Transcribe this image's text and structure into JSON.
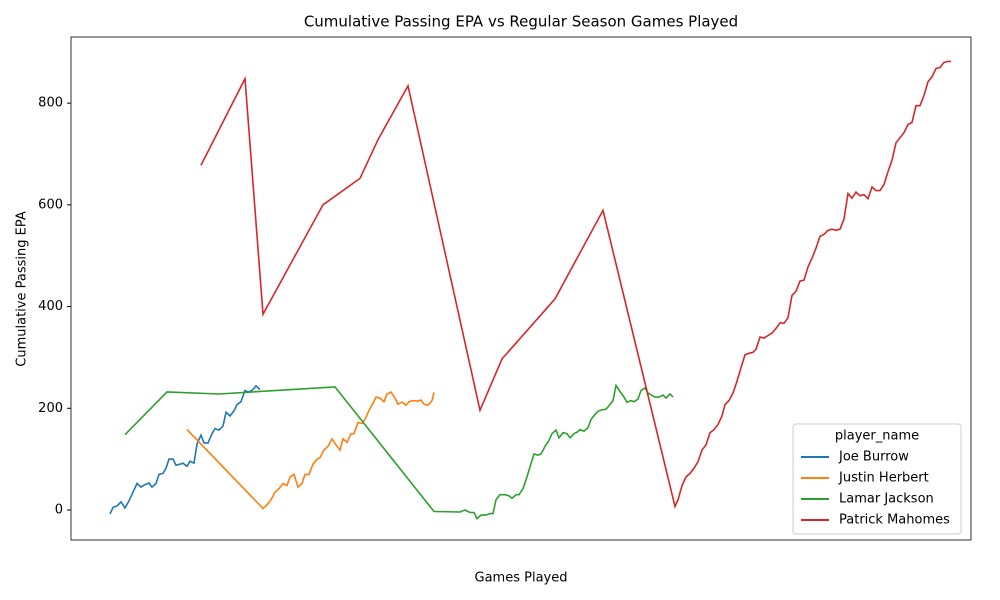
{
  "chart_data": {
    "type": "line",
    "title": "Cumulative Passing EPA vs Regular Season Games Played",
    "x_label": "Games Played",
    "y_label": "Cumulative Passing EPA",
    "xlim": [
      -39,
      861
    ],
    "ylim": [
      -59,
      930
    ],
    "yticks": [
      0,
      200,
      400,
      600,
      800
    ],
    "legend": {
      "title": "player_name",
      "position": "lower right"
    },
    "series": [
      {
        "name": "Joe Burrow",
        "color": "#1f77b4",
        "x": [
          0,
          3,
          7,
          11,
          15,
          19,
          23,
          27,
          31,
          35,
          39,
          42,
          46,
          49,
          53,
          56,
          59,
          63,
          66,
          70,
          73,
          77,
          80,
          84,
          87,
          91,
          94,
          98,
          102,
          105,
          109,
          113,
          116,
          120,
          124,
          127,
          131,
          135,
          138,
          142,
          146,
          150
        ],
        "values": [
          -8,
          5,
          8,
          16,
          4,
          18,
          35,
          52,
          45,
          50,
          53,
          45,
          52,
          70,
          72,
          82,
          100,
          100,
          88,
          90,
          92,
          86,
          96,
          92,
          130,
          147,
          132,
          132,
          150,
          160,
          157,
          165,
          192,
          185,
          195,
          207,
          213,
          235,
          232,
          235,
          244,
          237
        ]
      },
      {
        "name": "Justin Herbert",
        "color": "#ff7f0e",
        "x": [
          77,
          153,
          157,
          161,
          165,
          169,
          173,
          177,
          180,
          184,
          188,
          192,
          195,
          199,
          203,
          207,
          210,
          214,
          218,
          222,
          226,
          230,
          233,
          237,
          241,
          244,
          248,
          252,
          256,
          259,
          263,
          266,
          270,
          274,
          277,
          281,
          285,
          288,
          292,
          296,
          299,
          303,
          307,
          311,
          314,
          318,
          322,
          324
        ],
        "values": [
          158,
          3,
          10,
          20,
          35,
          42,
          52,
          48,
          65,
          70,
          45,
          52,
          70,
          70,
          90,
          100,
          103,
          118,
          125,
          140,
          128,
          118,
          140,
          133,
          150,
          150,
          172,
          170,
          182,
          196,
          210,
          222,
          220,
          213,
          228,
          232,
          220,
          208,
          212,
          206,
          213,
          215,
          214,
          216,
          208,
          206,
          215,
          231
        ]
      },
      {
        "name": "Lamar Jackson",
        "color": "#2ca02c",
        "x": [
          15,
          57,
          109,
          225,
          324,
          350,
          355,
          360,
          364,
          367,
          371,
          376,
          380,
          383,
          386,
          390,
          395,
          399,
          402,
          406,
          409,
          413,
          417,
          420,
          424,
          428,
          431,
          435,
          439,
          442,
          446,
          449,
          453,
          457,
          460,
          464,
          467,
          470,
          474,
          478,
          481,
          485,
          488,
          492,
          496,
          499,
          503,
          506,
          510,
          514,
          517,
          521,
          524,
          528,
          531,
          535,
          538,
          542,
          545,
          549,
          553,
          556,
          560,
          563
        ],
        "values": [
          148,
          232,
          228,
          242,
          -3,
          -4,
          0,
          -5,
          -5,
          -17,
          -10,
          -10,
          -7,
          -7,
          20,
          30,
          30,
          28,
          23,
          30,
          30,
          42,
          65,
          85,
          110,
          108,
          110,
          125,
          137,
          150,
          157,
          142,
          152,
          150,
          142,
          150,
          153,
          158,
          155,
          162,
          178,
          188,
          194,
          197,
          198,
          205,
          215,
          245,
          233,
          222,
          212,
          215,
          213,
          218,
          235,
          240,
          230,
          225,
          222,
          222,
          226,
          220,
          228,
          222
        ]
      },
      {
        "name": "Patrick Mahomes",
        "color": "#d62728",
        "x": [
          91,
          135,
          153,
          213,
          250,
          268,
          298,
          370,
          392,
          445,
          493,
          565,
          568,
          572,
          576,
          580,
          584,
          588,
          592,
          596,
          600,
          604,
          608,
          612,
          615,
          619,
          623,
          627,
          631,
          635,
          639,
          643,
          646,
          650,
          654,
          658,
          662,
          666,
          670,
          674,
          678,
          682,
          686,
          690,
          694,
          698,
          702,
          706,
          710,
          714,
          718,
          722,
          726,
          730,
          734,
          738,
          742,
          746,
          750,
          754,
          758,
          762,
          766,
          770,
          774,
          778,
          782,
          786,
          790,
          794,
          798,
          802,
          806,
          810,
          814,
          818,
          822,
          826,
          830,
          834,
          838,
          841
        ],
        "values": [
          678,
          848,
          385,
          600,
          652,
          728,
          834,
          196,
          297,
          415,
          589,
          7,
          20,
          48,
          65,
          72,
          82,
          95,
          118,
          128,
          152,
          158,
          168,
          185,
          207,
          215,
          230,
          253,
          280,
          305,
          308,
          310,
          316,
          340,
          338,
          343,
          348,
          357,
          368,
          367,
          378,
          422,
          430,
          450,
          452,
          478,
          495,
          515,
          538,
          542,
          550,
          552,
          550,
          552,
          572,
          622,
          613,
          625,
          618,
          620,
          612,
          635,
          628,
          628,
          640,
          665,
          688,
          722,
          732,
          742,
          758,
          762,
          795,
          795,
          815,
          842,
          852,
          868,
          870,
          880,
          882,
          882
        ]
      }
    ]
  }
}
